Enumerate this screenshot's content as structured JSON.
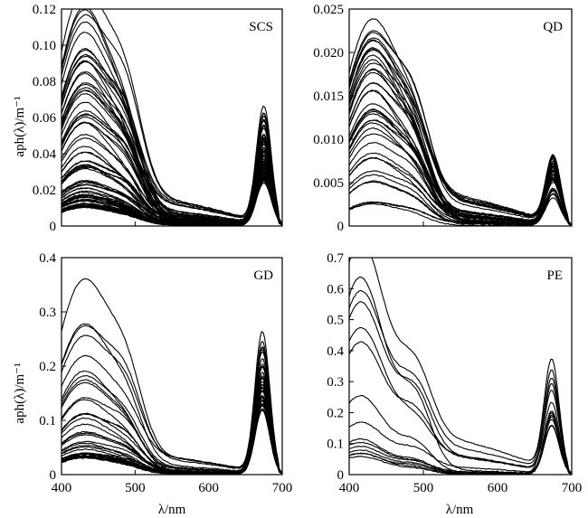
{
  "chart_data": [
    {
      "type": "line",
      "tag": "SCS",
      "ylabel": "aph(λ)/m⁻¹",
      "xlim": [
        400,
        700
      ],
      "ylim": [
        0,
        0.12
      ],
      "xticks": [],
      "yticks": [
        "0",
        "0.02",
        "0.04",
        "0.06",
        "0.08",
        "0.10",
        "0.12"
      ],
      "ytick_values": [
        0,
        0.02,
        0.04,
        0.06,
        0.08,
        0.1,
        0.12
      ],
      "series_summary": {
        "approx_count": 80,
        "blue_peak_nm": 440,
        "red_peak_nm": 675,
        "max_blue_peak": 0.114,
        "max_red_peak": 0.06
      },
      "series": [
        {
          "x": [
            400,
            440,
            500,
            550,
            600,
            650,
            675,
            700
          ],
          "values": [
            0.073,
            0.114,
            0.078,
            0.04,
            0.035,
            0.04,
            0.06,
            0.033
          ]
        },
        {
          "x": [
            400,
            440,
            500,
            550,
            600,
            650,
            675,
            700
          ],
          "values": [
            0.052,
            0.09,
            0.055,
            0.03,
            0.022,
            0.025,
            0.052,
            0.023
          ]
        },
        {
          "x": [
            400,
            440,
            500,
            550,
            600,
            650,
            675,
            700
          ],
          "values": [
            0.036,
            0.066,
            0.038,
            0.016,
            0.011,
            0.018,
            0.044,
            0.014
          ]
        },
        {
          "x": [
            400,
            440,
            500,
            550,
            600,
            650,
            675,
            700
          ],
          "values": [
            0.024,
            0.046,
            0.027,
            0.011,
            0.007,
            0.012,
            0.032,
            0.009
          ]
        },
        {
          "x": [
            400,
            440,
            500,
            550,
            600,
            650,
            675,
            700
          ],
          "values": [
            0.016,
            0.031,
            0.017,
            0.007,
            0.004,
            0.008,
            0.022,
            0.006
          ]
        },
        {
          "x": [
            400,
            440,
            500,
            550,
            600,
            650,
            675,
            700
          ],
          "values": [
            0.01,
            0.018,
            0.01,
            0.004,
            0.002,
            0.004,
            0.012,
            0.003
          ]
        }
      ]
    },
    {
      "type": "line",
      "tag": "QD",
      "ylabel": "",
      "xlim": [
        400,
        700
      ],
      "ylim": [
        0,
        0.025
      ],
      "xticks": [],
      "yticks": [
        "0",
        "0.005",
        "0.010",
        "0.015",
        "0.020",
        "0.025"
      ],
      "ytick_values": [
        0,
        0.005,
        0.01,
        0.015,
        0.02,
        0.025
      ],
      "series_summary": {
        "approx_count": 40,
        "blue_peak_nm": 440,
        "red_peak_nm": 675,
        "max_blue_peak": 0.02,
        "max_red_peak": 0.0075
      },
      "series": [
        {
          "x": [
            400,
            440,
            500,
            550,
            600,
            650,
            675,
            700
          ],
          "values": [
            0.012,
            0.02,
            0.012,
            0.003,
            0.0015,
            0.002,
            0.0075,
            0.0005
          ]
        },
        {
          "x": [
            400,
            440,
            500,
            550,
            600,
            650,
            675,
            700
          ],
          "values": [
            0.01,
            0.017,
            0.011,
            0.0025,
            0.001,
            0.0018,
            0.0065,
            0.0004
          ]
        },
        {
          "x": [
            400,
            440,
            500,
            550,
            600,
            650,
            675,
            700
          ],
          "values": [
            0.008,
            0.014,
            0.0095,
            0.002,
            0.001,
            0.0015,
            0.0055,
            0.0003
          ]
        },
        {
          "x": [
            400,
            440,
            500,
            550,
            600,
            650,
            675,
            700
          ],
          "values": [
            0.0065,
            0.012,
            0.008,
            0.0018,
            0.0008,
            0.0012,
            0.0045,
            0.0003
          ]
        },
        {
          "x": [
            400,
            440,
            500,
            550,
            600,
            650,
            675,
            700
          ],
          "values": [
            0.005,
            0.009,
            0.006,
            0.0015,
            0.0006,
            0.001,
            0.0035,
            0.0002
          ]
        }
      ]
    },
    {
      "type": "line",
      "tag": "GD",
      "ylabel": "aph(λ)/m⁻¹",
      "xlabel": "λ/nm",
      "xlim": [
        400,
        700
      ],
      "ylim": [
        0,
        0.4
      ],
      "xticks": [
        "400",
        "500",
        "600",
        "700"
      ],
      "xtick_values": [
        400,
        500,
        600,
        700
      ],
      "yticks": [
        "0",
        "0.1",
        "0.2",
        "0.3",
        "0.4"
      ],
      "ytick_values": [
        0,
        0.1,
        0.2,
        0.3,
        0.4
      ],
      "series_summary": {
        "approx_count": 40,
        "blue_peak_nm": 440,
        "red_peak_nm": 673,
        "max_blue_peak": 0.35,
        "max_red_peak": 0.285
      },
      "series": [
        {
          "x": [
            400,
            440,
            500,
            550,
            600,
            640,
            673,
            700
          ],
          "values": [
            0.24,
            0.35,
            0.23,
            0.14,
            0.09,
            0.12,
            0.285,
            0.07
          ]
        },
        {
          "x": [
            400,
            440,
            500,
            550,
            600,
            640,
            673,
            700
          ],
          "values": [
            0.18,
            0.265,
            0.18,
            0.12,
            0.08,
            0.11,
            0.22,
            0.06
          ]
        },
        {
          "x": [
            400,
            440,
            500,
            550,
            600,
            640,
            673,
            700
          ],
          "values": [
            0.15,
            0.24,
            0.17,
            0.11,
            0.075,
            0.1,
            0.21,
            0.055
          ]
        },
        {
          "x": [
            400,
            440,
            500,
            550,
            600,
            640,
            673,
            700
          ],
          "values": [
            0.12,
            0.17,
            0.125,
            0.09,
            0.07,
            0.08,
            0.14,
            0.04
          ]
        },
        {
          "x": [
            400,
            440,
            500,
            550,
            600,
            640,
            673,
            700
          ],
          "values": [
            0.09,
            0.13,
            0.09,
            0.06,
            0.04,
            0.05,
            0.1,
            0.03
          ]
        },
        {
          "x": [
            400,
            440,
            500,
            550,
            600,
            640,
            673,
            700
          ],
          "values": [
            0.06,
            0.075,
            0.05,
            0.025,
            0.015,
            0.03,
            0.065,
            0.015
          ]
        },
        {
          "x": [
            400,
            440,
            500,
            550,
            600,
            640,
            673,
            700
          ],
          "values": [
            0.04,
            0.05,
            0.035,
            0.015,
            0.01,
            0.02,
            0.045,
            0.01
          ]
        },
        {
          "x": [
            400,
            440,
            500,
            550,
            600,
            640,
            673,
            700
          ],
          "values": [
            0.02,
            0.03,
            0.02,
            0.008,
            0.005,
            0.01,
            0.03,
            0.005
          ]
        }
      ]
    },
    {
      "type": "line",
      "tag": "PE",
      "ylabel": "",
      "xlabel": "λ/nm",
      "xlim": [
        400,
        700
      ],
      "ylim": [
        0,
        0.7
      ],
      "xticks": [
        "400",
        "500",
        "600",
        "700"
      ],
      "xtick_values": [
        400,
        500,
        600,
        700
      ],
      "yticks": [
        "0",
        "0.1",
        "0.2",
        "0.3",
        "0.4",
        "0.5",
        "0.6",
        "0.7"
      ],
      "ytick_values": [
        0,
        0.1,
        0.2,
        0.3,
        0.4,
        0.5,
        0.6,
        0.7
      ],
      "series_summary": {
        "approx_count": 15,
        "blue_peak_nm": 420,
        "red_peak_nm": 673,
        "max_blue_peak": 0.62,
        "max_red_peak": 0.34
      },
      "series": [
        {
          "x": [
            400,
            420,
            440,
            500,
            550,
            600,
            650,
            673,
            700
          ],
          "values": [
            0.6,
            0.62,
            0.61,
            0.33,
            0.18,
            0.1,
            0.12,
            0.34,
            0.06
          ]
        },
        {
          "x": [
            400,
            420,
            440,
            500,
            550,
            600,
            650,
            673,
            700
          ],
          "values": [
            0.25,
            0.29,
            0.33,
            0.19,
            0.1,
            0.05,
            0.06,
            0.19,
            0.03
          ]
        },
        {
          "x": [
            400,
            420,
            440,
            500,
            550,
            600,
            650,
            673,
            700
          ],
          "values": [
            0.2,
            0.24,
            0.26,
            0.17,
            0.09,
            0.045,
            0.055,
            0.16,
            0.025
          ]
        },
        {
          "x": [
            400,
            420,
            440,
            500,
            550,
            600,
            650,
            673,
            700
          ],
          "values": [
            0.1,
            0.11,
            0.12,
            0.08,
            0.04,
            0.02,
            0.03,
            0.1,
            0.015
          ]
        },
        {
          "x": [
            400,
            420,
            440,
            500,
            550,
            600,
            650,
            673,
            700
          ],
          "values": [
            0.07,
            0.075,
            0.08,
            0.05,
            0.025,
            0.012,
            0.02,
            0.06,
            0.01
          ]
        },
        {
          "x": [
            400,
            420,
            440,
            500,
            550,
            600,
            650,
            673,
            700
          ],
          "values": [
            0.03,
            0.035,
            0.04,
            0.025,
            0.012,
            0.006,
            0.01,
            0.03,
            0.005
          ]
        }
      ]
    }
  ]
}
